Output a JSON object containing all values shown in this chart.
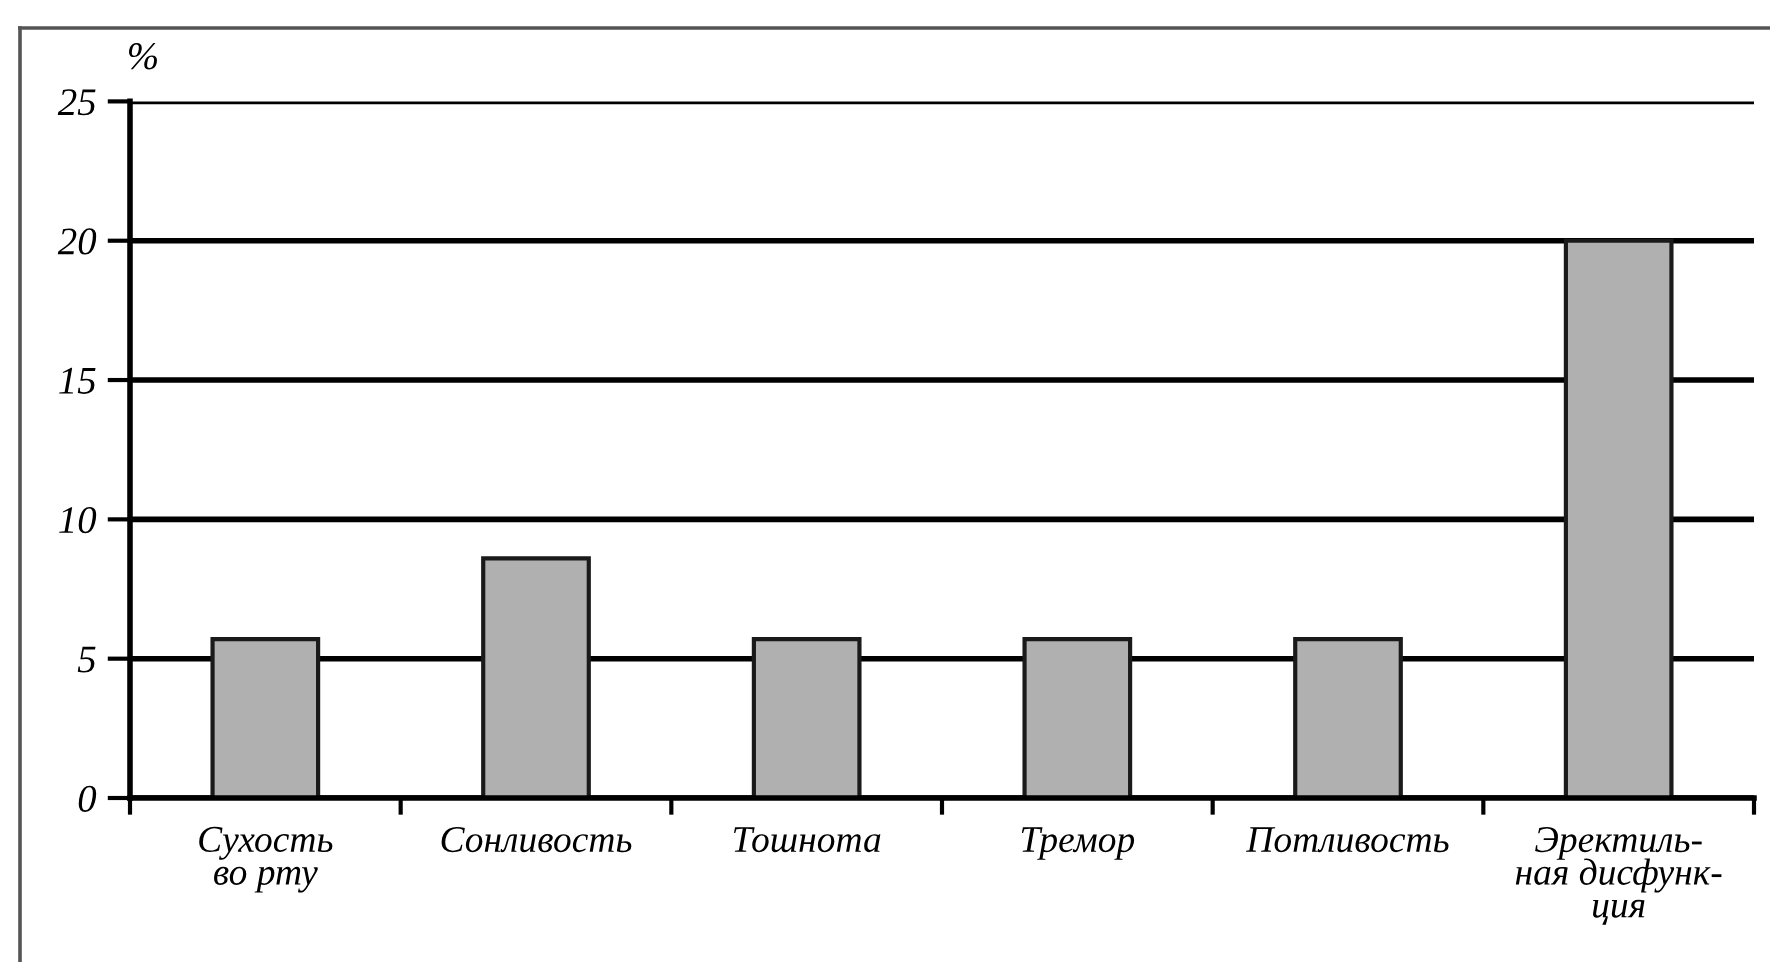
{
  "chart_data": {
    "type": "bar",
    "ylabel": "%",
    "categories": [
      "Сухость\nво рту",
      "Сонливость",
      "Тошнота",
      "Тремор",
      "Потливость",
      "Эректиль-\nная дисфунк-\nция"
    ],
    "values": [
      5.7,
      8.6,
      5.7,
      5.7,
      5.7,
      20
    ],
    "color": "#b0b0b0",
    "ylim": [
      0,
      25
    ],
    "yticks": [
      0,
      5,
      10,
      15,
      20,
      25
    ],
    "grid": "y",
    "legend": false
  }
}
